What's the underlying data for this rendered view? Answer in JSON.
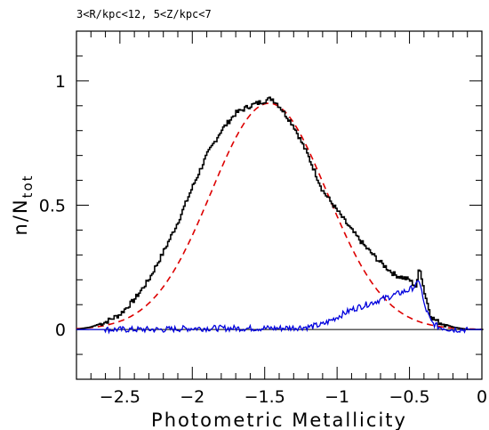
{
  "chart_data": {
    "type": "line",
    "title": "3<R/kpc<12, 5<Z/kpc<7",
    "xlabel": "Photometric Metallicity",
    "ylabel_main": "n/N",
    "ylabel_sub": "tot",
    "xlim": [
      -2.8,
      0
    ],
    "ylim": [
      -0.2,
      1.2
    ],
    "x_ticks": [
      -2.5,
      -2,
      -1.5,
      -1,
      -0.5,
      0
    ],
    "x_tick_labels": [
      "−2.5",
      "−2",
      "−1.5",
      "−1",
      "−0.5",
      "0"
    ],
    "y_ticks": [
      0,
      0.5,
      1
    ],
    "y_tick_labels": [
      "0",
      "0.5",
      "1"
    ],
    "zero_line": 0,
    "gaussian_fit": {
      "amplitude": 0.91,
      "mean": -1.47,
      "sigma": 0.4,
      "color": "#dd0000",
      "style": "dashed"
    },
    "series": [
      {
        "color": "#000000",
        "style": "histogram",
        "x": [
          -2.8,
          -2.7,
          -2.6,
          -2.5,
          -2.4,
          -2.3,
          -2.2,
          -2.1,
          -2.0,
          -1.9,
          -1.8,
          -1.7,
          -1.6,
          -1.5,
          -1.45,
          -1.4,
          -1.3,
          -1.2,
          -1.1,
          -1.0,
          -0.9,
          -0.8,
          -0.7,
          -0.6,
          -0.5,
          -0.45,
          -0.43,
          -0.4,
          -0.35,
          -0.3,
          -0.2,
          -0.1,
          0.0
        ],
        "y": [
          0.0,
          0.01,
          0.03,
          0.06,
          0.12,
          0.2,
          0.31,
          0.43,
          0.57,
          0.7,
          0.8,
          0.87,
          0.9,
          0.92,
          0.93,
          0.9,
          0.82,
          0.7,
          0.56,
          0.48,
          0.4,
          0.33,
          0.27,
          0.22,
          0.2,
          0.17,
          0.26,
          0.16,
          0.05,
          0.03,
          0.01,
          0.0,
          0.0
        ]
      },
      {
        "color": "#0000dd",
        "style": "noisy-line",
        "x": [
          -2.8,
          -2.6,
          -2.4,
          -2.2,
          -2.0,
          -1.8,
          -1.6,
          -1.4,
          -1.2,
          -1.1,
          -1.0,
          -0.9,
          -0.8,
          -0.7,
          -0.6,
          -0.5,
          -0.45,
          -0.43,
          -0.4,
          -0.35,
          -0.3,
          -0.2,
          -0.1,
          0.0
        ],
        "y": [
          0.0,
          0.0,
          0.0,
          0.0,
          0.005,
          0.005,
          0.005,
          0.005,
          0.01,
          0.02,
          0.05,
          0.08,
          0.1,
          0.12,
          0.14,
          0.16,
          0.18,
          0.2,
          0.1,
          0.03,
          0.01,
          0.0,
          0.0,
          0.0
        ]
      }
    ]
  }
}
